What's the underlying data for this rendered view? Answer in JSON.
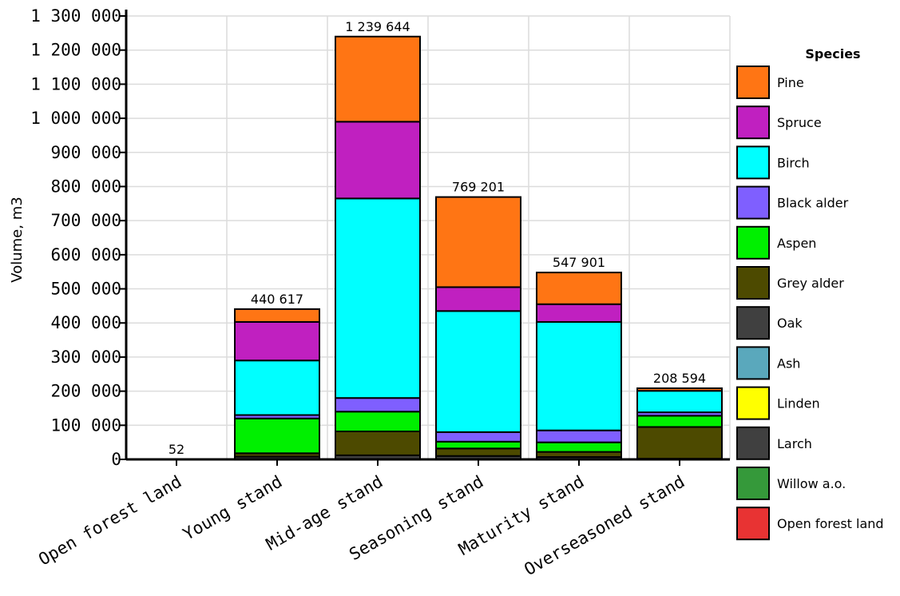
{
  "chart_data": {
    "type": "bar",
    "stacked": true,
    "categories": [
      "Open forest land",
      "Young stand",
      "Mid-age stand",
      "Seasoning stand",
      "Maturity stand",
      "Overseasoned stand"
    ],
    "ylabel": "Volume, m3",
    "ylim": [
      0,
      1300000
    ],
    "yticks": [
      0,
      100000,
      200000,
      300000,
      400000,
      500000,
      600000,
      700000,
      800000,
      900000,
      1000000,
      1100000,
      1200000,
      1300000
    ],
    "ytick_labels": [
      "0",
      "100 000",
      "200 000",
      "300 000",
      "400 000",
      "500 000",
      "600 000",
      "700 000",
      "800 000",
      "900 000",
      "1 000 000",
      "1 100 000",
      "1 200 000",
      "1 300 000"
    ],
    "totals": [
      52,
      440617,
      1239644,
      769201,
      547901,
      208594
    ],
    "total_labels": [
      "52",
      "440 617",
      "1 239 644",
      "769 201",
      "547 901",
      "208 594"
    ],
    "grid": true,
    "legend": {
      "title": "Species",
      "position": "right"
    },
    "series": [
      {
        "name": "Larch",
        "color": "#404040",
        "values": [
          0,
          8000,
          12000,
          10000,
          7000,
          2000
        ]
      },
      {
        "name": "Grey alder",
        "color": "#4d4a00",
        "values": [
          0,
          10000,
          70000,
          22000,
          15000,
          93000
        ]
      },
      {
        "name": "Aspen",
        "color": "#00f000",
        "values": [
          0,
          102000,
          58000,
          20000,
          28000,
          33000
        ]
      },
      {
        "name": "Black alder",
        "color": "#7f5fff",
        "values": [
          0,
          10000,
          40000,
          28000,
          35000,
          10000
        ]
      },
      {
        "name": "Birch",
        "color": "#00ffff",
        "values": [
          0,
          160000,
          585000,
          355000,
          318000,
          63000
        ]
      },
      {
        "name": "Spruce",
        "color": "#c020c0",
        "values": [
          0,
          113000,
          225000,
          70000,
          52000,
          0
        ]
      },
      {
        "name": "Pine",
        "color": "#ff7514",
        "values": [
          52,
          37617,
          249644,
          264201,
          92901,
          7594
        ]
      },
      {
        "name": "Oak",
        "color": "#404040",
        "values": [
          0,
          0,
          0,
          0,
          0,
          0
        ]
      },
      {
        "name": "Ash",
        "color": "#5aa8bc",
        "values": [
          0,
          0,
          0,
          0,
          0,
          0
        ]
      },
      {
        "name": "Linden",
        "color": "#ffff00",
        "values": [
          0,
          0,
          0,
          0,
          0,
          0
        ]
      },
      {
        "name": "Willow a.o.",
        "color": "#35993a",
        "values": [
          0,
          0,
          0,
          0,
          0,
          0
        ]
      },
      {
        "name": "Open forest land",
        "color": "#e83333",
        "values": [
          0,
          0,
          0,
          0,
          0,
          0
        ]
      }
    ],
    "legend_order": [
      "Pine",
      "Spruce",
      "Birch",
      "Black alder",
      "Aspen",
      "Grey alder",
      "Oak",
      "Ash",
      "Linden",
      "Larch",
      "Willow a.o.",
      "Open forest land"
    ]
  }
}
